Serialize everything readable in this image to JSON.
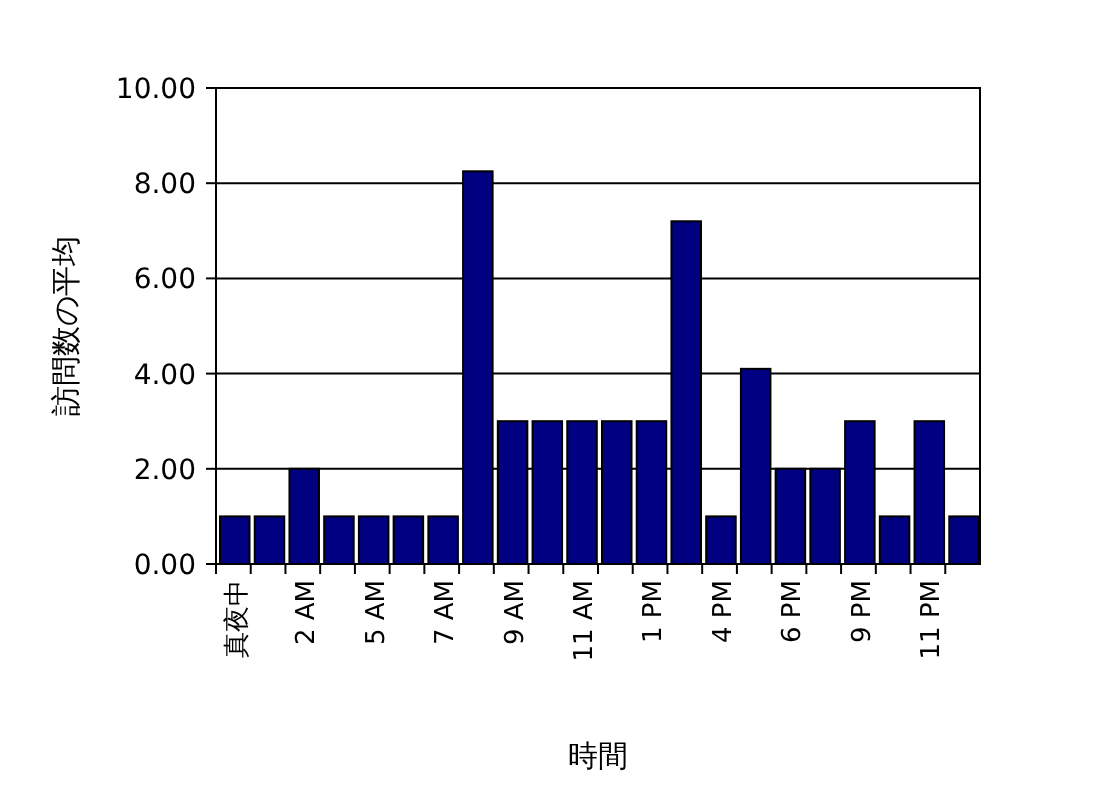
{
  "chart_data": {
    "type": "bar",
    "xlabel": "時間",
    "ylabel": "訪問数の平均",
    "categories": [
      "真夜中",
      null,
      "2 AM",
      null,
      "5 AM",
      null,
      "7 AM",
      null,
      "9 AM",
      null,
      "11 AM",
      null,
      "1 PM",
      null,
      "4 PM",
      null,
      "6 PM",
      null,
      "9 PM",
      null,
      "11 PM",
      null
    ],
    "values": [
      1,
      1,
      2,
      1,
      1,
      1,
      1,
      8.25,
      3,
      3,
      3,
      3,
      3,
      7.2,
      1,
      4.1,
      2,
      2,
      3,
      1,
      3,
      1
    ],
    "color": "#000080",
    "ylim": [
      0,
      10
    ],
    "yticks": [
      {
        "value": 0,
        "label": "0.00"
      },
      {
        "value": 2,
        "label": "2.00"
      },
      {
        "value": 4,
        "label": "4.00"
      },
      {
        "value": 6,
        "label": "6.00"
      },
      {
        "value": 8,
        "label": "8.00"
      },
      {
        "value": 10,
        "label": "10.00"
      }
    ],
    "grid": "y"
  }
}
